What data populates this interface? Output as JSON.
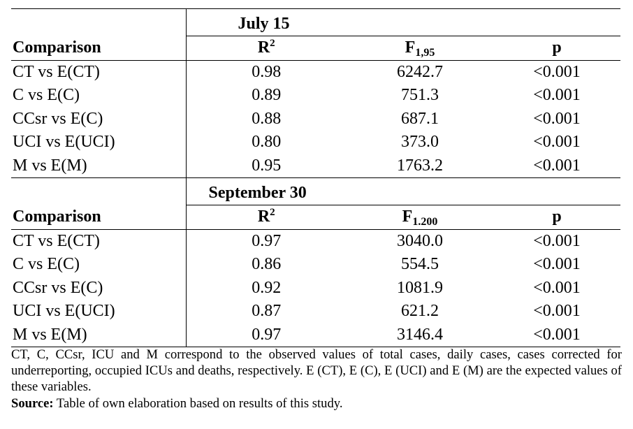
{
  "sections": [
    {
      "date": "July 15",
      "headers": {
        "comparison": "Comparison",
        "r2_base": "R",
        "r2_sup": "2",
        "f_base": "F",
        "f_sub": "1,95",
        "p": "p"
      },
      "rows": [
        {
          "comparison": "CT vs E(CT)",
          "r2": "0.98",
          "f": "6242.7",
          "p": "<0.001"
        },
        {
          "comparison": "C vs E(C)",
          "r2": "0.89",
          "f": "751.3",
          "p": "<0.001"
        },
        {
          "comparison": "CCsr vs E(C)",
          "r2": "0.88",
          "f": "687.1",
          "p": "<0.001"
        },
        {
          "comparison": "UCI vs E(UCI)",
          "r2": "0.80",
          "f": "373.0",
          "p": "<0.001"
        },
        {
          "comparison": "M vs E(M)",
          "r2": "0.95",
          "f": "1763.2",
          "p": "<0.001"
        }
      ]
    },
    {
      "date": "September 30",
      "headers": {
        "comparison": "Comparison",
        "r2_base": "R",
        "r2_sup": "2",
        "f_base": "F",
        "f_sub": "1.200",
        "p": "p"
      },
      "rows": [
        {
          "comparison": "CT vs E(CT)",
          "r2": "0.97",
          "f": "3040.0",
          "p": "<0.001"
        },
        {
          "comparison": "C vs E(C)",
          "r2": "0.86",
          "f": "554.5",
          "p": "<0.001"
        },
        {
          "comparison": "CCsr vs E(C)",
          "r2": "0.92",
          "f": "1081.9",
          "p": "<0.001"
        },
        {
          "comparison": "UCI vs E(UCI)",
          "r2": "0.87",
          "f": "621.2",
          "p": "<0.001"
        },
        {
          "comparison": "M vs E(M)",
          "r2": "0.97",
          "f": "3146.4",
          "p": "<0.001"
        }
      ]
    }
  ],
  "footnote": {
    "note": "CT, C, CCsr, ICU and M correspond to the observed values of total cases, daily cases, cases corrected for underreporting, occupied ICUs and deaths, respectively. E (CT), E (C), E (UCI) and E (M) are the expected values of these variables.",
    "source_label": "Source:",
    "source_text": " Table of own elaboration based on results of this study."
  }
}
